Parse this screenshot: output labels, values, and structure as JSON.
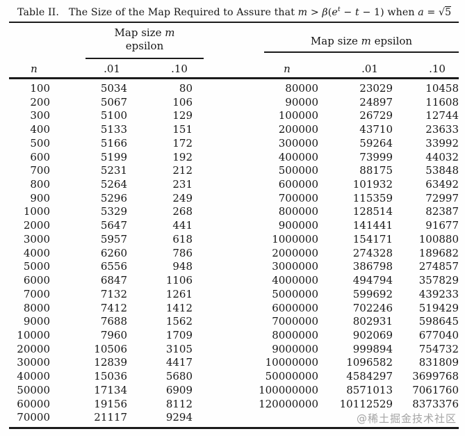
{
  "caption": {
    "label": "Table II.",
    "title_pre": "The Size of the Map Required to Assure that ",
    "math": {
      "m": "m",
      "gt": " > ",
      "beta": "β",
      "open_paren": "(",
      "e": "e",
      "sup_t": "t",
      "minus1": " − ",
      "t": "t",
      "minus2": " − 1) when ",
      "a": "a",
      "eq": " = ",
      "sqrt": "√",
      "five": "5"
    }
  },
  "left_table": {
    "group_header": {
      "pre": "Map size ",
      "m": "m",
      "line2": "epsilon"
    },
    "columns": {
      "n": "n",
      "c01": ".01",
      "c10": ".10"
    },
    "rows": [
      [
        100,
        5034,
        80
      ],
      [
        200,
        5067,
        106
      ],
      [
        300,
        5100,
        129
      ],
      [
        400,
        5133,
        151
      ],
      [
        500,
        5166,
        172
      ],
      [
        600,
        5199,
        192
      ],
      [
        700,
        5231,
        212
      ],
      [
        800,
        5264,
        231
      ],
      [
        900,
        5296,
        249
      ],
      [
        1000,
        5329,
        268
      ],
      [
        2000,
        5647,
        441
      ],
      [
        3000,
        5957,
        618
      ],
      [
        4000,
        6260,
        786
      ],
      [
        5000,
        6556,
        948
      ],
      [
        6000,
        6847,
        1106
      ],
      [
        7000,
        7132,
        1261
      ],
      [
        8000,
        7412,
        1412
      ],
      [
        9000,
        7688,
        1562
      ],
      [
        10000,
        7960,
        1709
      ],
      [
        20000,
        10506,
        3105
      ],
      [
        30000,
        12839,
        4417
      ],
      [
        40000,
        15036,
        5680
      ],
      [
        50000,
        17134,
        6909
      ],
      [
        60000,
        19156,
        8112
      ],
      [
        70000,
        21117,
        9294
      ]
    ]
  },
  "right_table": {
    "group_header": {
      "pre": "Map size ",
      "m": "m",
      "post": " epsilon"
    },
    "columns": {
      "n": "n",
      "c01": ".01",
      "c10": ".10"
    },
    "rows": [
      [
        80000,
        23029,
        10458
      ],
      [
        90000,
        24897,
        11608
      ],
      [
        100000,
        26729,
        12744
      ],
      [
        200000,
        43710,
        23633
      ],
      [
        300000,
        59264,
        33992
      ],
      [
        400000,
        73999,
        44032
      ],
      [
        500000,
        88175,
        53848
      ],
      [
        600000,
        101932,
        63492
      ],
      [
        700000,
        115359,
        72997
      ],
      [
        800000,
        128514,
        82387
      ],
      [
        900000,
        141441,
        91677
      ],
      [
        1000000,
        154171,
        100880
      ],
      [
        2000000,
        274328,
        189682
      ],
      [
        3000000,
        386798,
        274857
      ],
      [
        4000000,
        494794,
        357829
      ],
      [
        5000000,
        599692,
        439233
      ],
      [
        6000000,
        702246,
        519429
      ],
      [
        7000000,
        802931,
        598645
      ],
      [
        8000000,
        902069,
        677040
      ],
      [
        9000000,
        999894,
        754732
      ],
      [
        10000000,
        1096582,
        831809
      ],
      [
        50000000,
        4584297,
        3699768
      ],
      [
        100000000,
        8571013,
        7061760
      ],
      [
        120000000,
        10112529,
        8373376
      ]
    ]
  },
  "watermark": "@稀土掘金技术社区"
}
